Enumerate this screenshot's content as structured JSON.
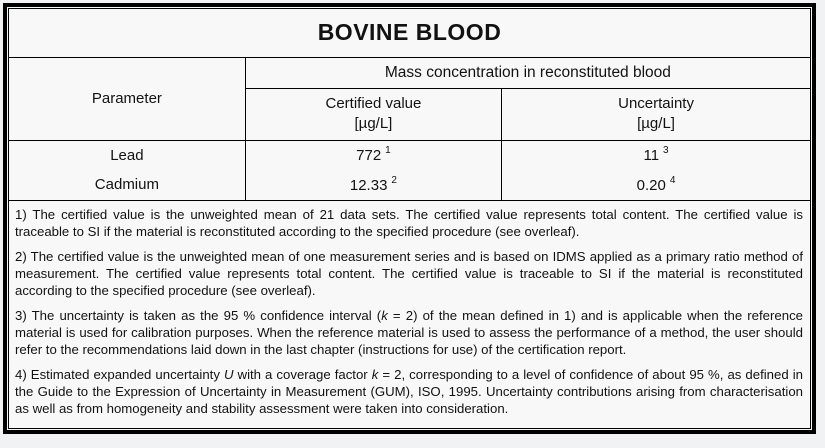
{
  "colors": {
    "border": "#000000",
    "page_background": "#f1f2f3",
    "paper_background": "#f8f8f8",
    "text": "#121212"
  },
  "table": {
    "title": "BOVINE BLOOD",
    "header": {
      "parameter": "Parameter",
      "group": "Mass concentration in reconstituted blood",
      "certified_line1": "Certified value",
      "certified_line2": "[µg/L]",
      "uncertainty_line1": "Uncertainty",
      "uncertainty_line2": "[µg/L]"
    },
    "rows": [
      {
        "parameter": "Lead",
        "certified": {
          "value": "772",
          "sup": "1"
        },
        "uncertainty": {
          "value": "11",
          "sup": "3"
        }
      },
      {
        "parameter": "Cadmium",
        "certified": {
          "value": "12.33",
          "sup": "2"
        },
        "uncertainty": {
          "value": "0.20",
          "sup": "4"
        }
      }
    ],
    "footnotes": [
      {
        "segments": [
          {
            "t": "1) The certified value is the unweighted mean of 21 data sets. The certified value represents total content. The certified value is traceable to SI if the material is reconstituted according to the specified procedure (see overleaf)."
          }
        ]
      },
      {
        "segments": [
          {
            "t": "2) The certified value is the unweighted mean of one measurement series and is based on IDMS applied as a primary ratio method of measurement. The certified value represents total content. The certified value is traceable to SI if the material is reconstituted according to the specified procedure (see overleaf)."
          }
        ]
      },
      {
        "segments": [
          {
            "t": "3) The uncertainty is taken as the 95 % confidence interval ("
          },
          {
            "t": "k",
            "i": true
          },
          {
            "t": " = 2) of the mean defined in 1) and is applicable when the reference material is used for calibration purposes. When the reference material is used to assess the performance of a method, the user should refer to the recommendations laid down in the last chapter (instructions for use) of the certification report."
          }
        ]
      },
      {
        "segments": [
          {
            "t": "4) Estimated expanded uncertainty "
          },
          {
            "t": "U",
            "i": true
          },
          {
            "t": " with a coverage factor "
          },
          {
            "t": "k",
            "i": true
          },
          {
            "t": " = 2, corresponding to a level of confidence of about 95 %, as defined in the Guide to the Expression of Uncertainty in Measurement (GUM), ISO, 1995. Uncertainty contributions arising from characterisation as well as from homogeneity and stability assessment were taken into consideration."
          }
        ]
      }
    ]
  }
}
